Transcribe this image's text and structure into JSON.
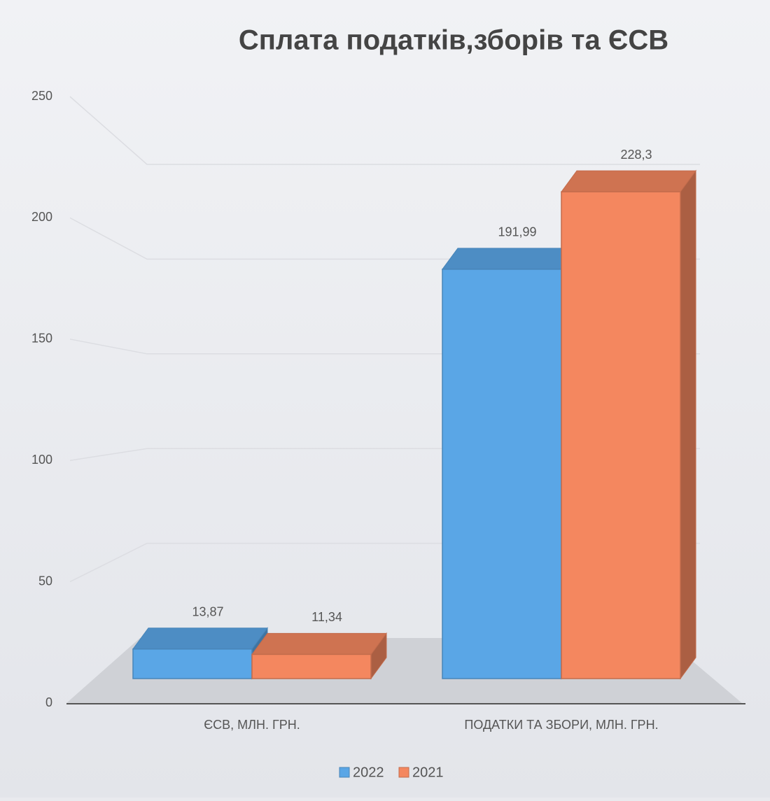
{
  "chart_data": {
    "type": "bar3d",
    "title": "Сплата податків,зборів та ЄСВ",
    "categories": [
      "ЄСВ, МЛН. ГРН.",
      "ПОДАТКИ ТА ЗБОРИ, МЛН. ГРН."
    ],
    "series": [
      {
        "name": "2022",
        "color": "#5aa6e6",
        "values": [
          13.87,
          191.99
        ],
        "value_labels": [
          "13,87",
          "191,99"
        ]
      },
      {
        "name": "2021",
        "color": "#f4875f",
        "values": [
          11.34,
          228.3
        ],
        "value_labels": [
          "11,34",
          "228,3"
        ]
      }
    ],
    "ylim": [
      0,
      250
    ],
    "yticks": [
      0,
      50,
      100,
      150,
      200,
      250
    ],
    "grid": true,
    "legend": "bottom"
  }
}
